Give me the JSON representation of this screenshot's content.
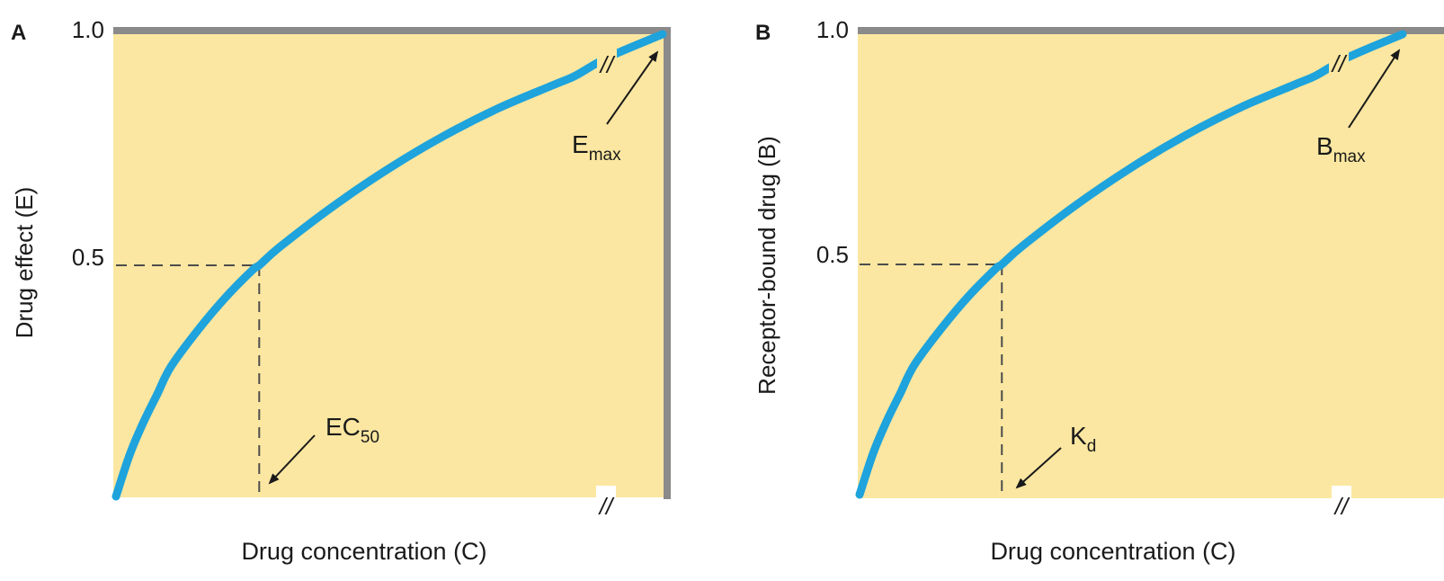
{
  "colors": {
    "plot_bg": "#fbe7a1",
    "frame": "#8a8a8a",
    "curve": "#1ea3dc",
    "dash": "#4d4d4d",
    "text": "#1a1a1a"
  },
  "chart_data": [
    {
      "type": "line",
      "panel_letter": "A",
      "xlabel": "Drug concentration (C)",
      "ylabel": "Drug effect (E)",
      "ylim": [
        0,
        1.0
      ],
      "xlim": [
        0,
        10
      ],
      "yticks": [
        "0.5",
        "1.0"
      ],
      "y_tick_values": [
        0.5,
        1.0
      ],
      "series": [
        {
          "x": [
            0,
            0.25,
            0.5,
            0.75,
            1,
            1.5,
            2,
            2.5,
            2.62,
            3,
            4,
            5,
            6,
            7,
            8,
            8.4,
            9,
            10
          ],
          "y": [
            0,
            0.09,
            0.16,
            0.22,
            0.28,
            0.36,
            0.43,
            0.49,
            0.5,
            0.54,
            0.63,
            0.71,
            0.78,
            0.84,
            0.89,
            0.91,
            0.95,
            1.0
          ]
        }
      ],
      "half_max": {
        "x": 2.62,
        "y": 0.5
      },
      "axis_break": "//",
      "annotations": [
        {
          "main": "E",
          "sub": "max"
        },
        {
          "main": "EC",
          "sub": "50"
        }
      ]
    },
    {
      "type": "line",
      "panel_letter": "B",
      "xlabel": "Drug concentration (C)",
      "ylabel": "Receptor-bound drug (B)",
      "ylim": [
        0,
        1.0
      ],
      "xlim": [
        0,
        10
      ],
      "yticks": [
        "0.5",
        "1.0"
      ],
      "y_tick_values": [
        0.5,
        1.0
      ],
      "series": [
        {
          "x": [
            0,
            0.25,
            0.5,
            0.75,
            1,
            1.5,
            2,
            2.5,
            2.62,
            3,
            4,
            5,
            6,
            7,
            8,
            8.4,
            9,
            10
          ],
          "y": [
            0,
            0.09,
            0.16,
            0.22,
            0.28,
            0.36,
            0.43,
            0.49,
            0.5,
            0.54,
            0.63,
            0.71,
            0.78,
            0.84,
            0.89,
            0.91,
            0.95,
            1.0
          ]
        }
      ],
      "half_max": {
        "x": 2.62,
        "y": 0.5
      },
      "axis_break": "//",
      "annotations": [
        {
          "main": "B",
          "sub": "max"
        },
        {
          "main": "K",
          "sub": "d"
        }
      ]
    }
  ]
}
